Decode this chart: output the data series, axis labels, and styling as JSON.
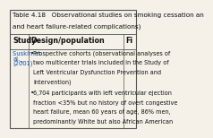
{
  "title_line1": "Table 4.18   Observational studies on smoking cessation an",
  "title_line2": "and heart failure-related complications)",
  "col_headers": [
    "Study",
    "Design/population",
    "Fi"
  ],
  "study_line1": "Suskin et",
  "study_line2": "al.",
  "study_line3": "(2001)",
  "study_superscript": "ᵃ",
  "bullet1_lines": [
    "Prospective cohorts (observational analyses of",
    "two multicenter trials included in the Study of",
    "Left Ventricular Dysfunction Prevention and",
    "Intervention)"
  ],
  "bullet2_lines": [
    "6,704 participants with left ventricular ejection",
    "fraction <35% but no history of overt congestive",
    "heart failure, mean 60 years of age, 86% men,",
    "predominantly White but also African American"
  ],
  "bg_color": "#f5f0e8",
  "border_color": "#555555",
  "text_color": "#111111",
  "link_color": "#1155aa",
  "font_size": 5.2,
  "header_font_size": 5.8
}
